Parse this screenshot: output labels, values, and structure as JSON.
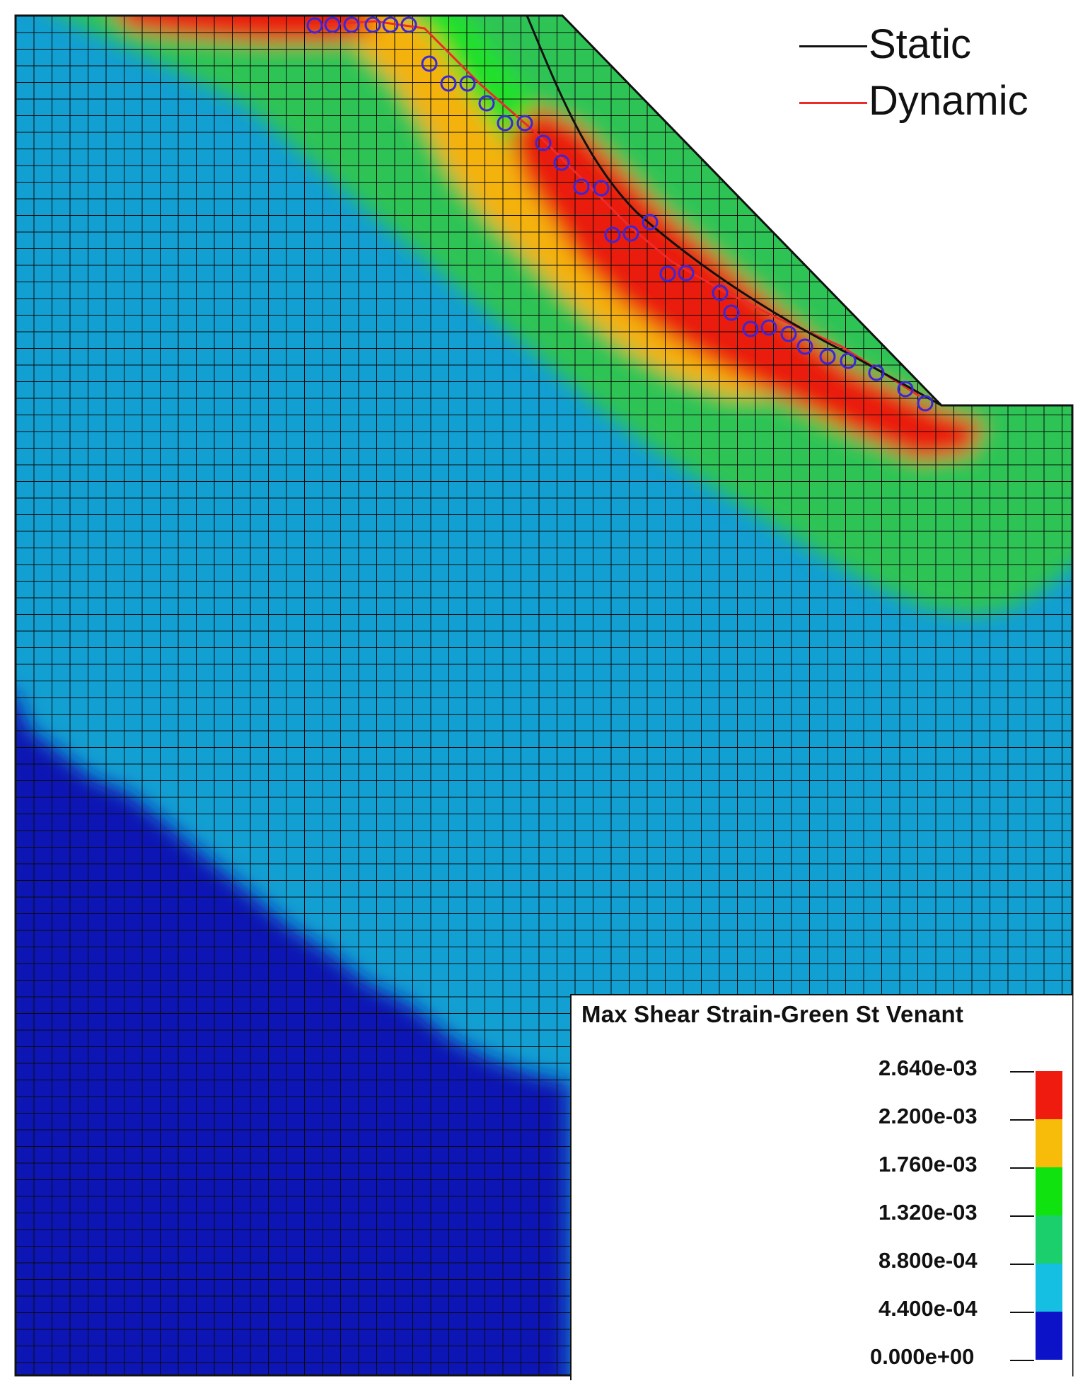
{
  "figure": {
    "legend_title": "Max Shear Strain-Green St Venant",
    "colorbar_levels": [
      "2.640e-03",
      "2.200e-03",
      "1.760e-03",
      "1.320e-03",
      "8.800e-04",
      "4.400e-04",
      "0.000e+00"
    ],
    "colorbar_colors": [
      "#ee1b0e",
      "#f6bc09",
      "#10e210",
      "#1ccf6d",
      "#14bfe2",
      "#0b12c8"
    ],
    "key": [
      {
        "label": "Static",
        "color": "#111111"
      },
      {
        "label": "Dynamic",
        "color": "#ee2a2a"
      }
    ],
    "colors": {
      "deep": "#0b17b4",
      "light": "#129fd2",
      "green": "#2fc455",
      "bright_green": "#23e02a",
      "orange": "#f4b20f",
      "red": "#ea1d10",
      "mesh": "#0a0a0a",
      "marker": "#3b26d8",
      "static_line": "#111111",
      "dynamic_line": "#ee2a2a"
    }
  }
}
